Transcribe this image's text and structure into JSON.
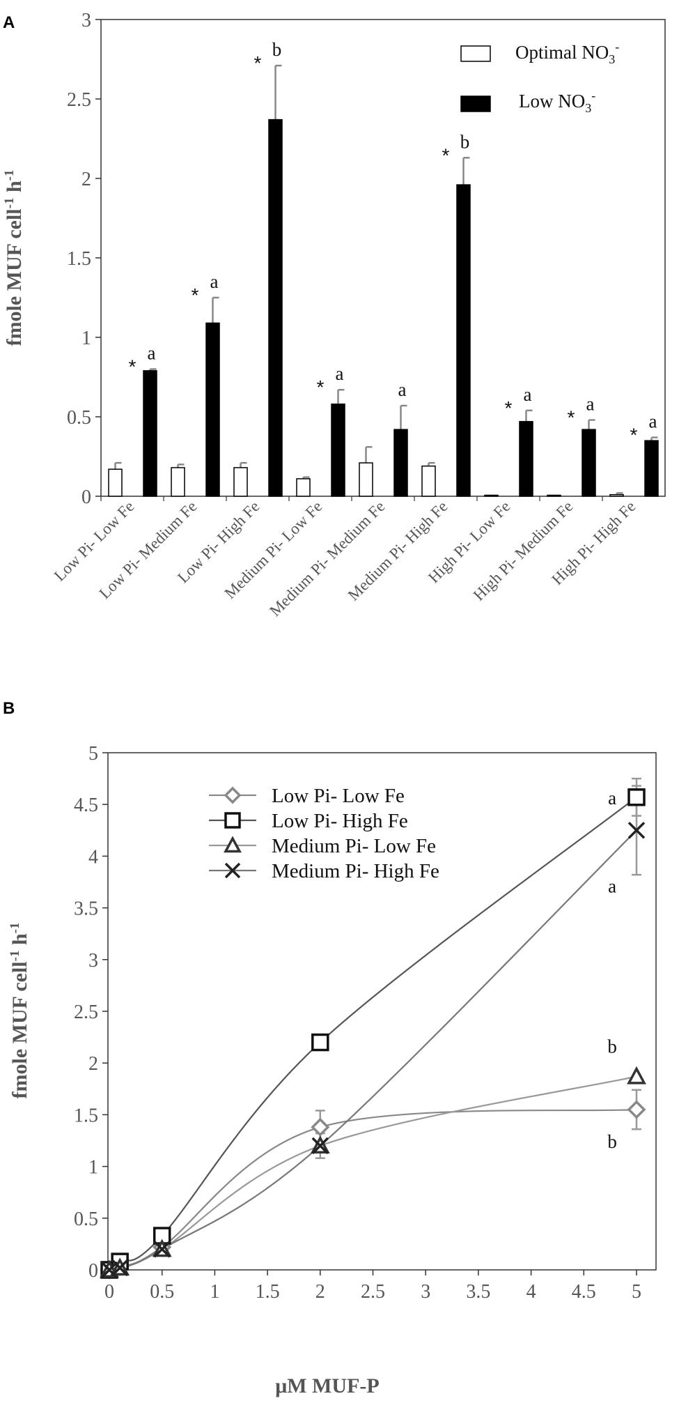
{
  "chart_data": [
    {
      "panel": "A",
      "type": "bar",
      "ylabel": "fmole MUF cell⁻¹ h⁻¹",
      "ylabel_parts": [
        "fmole MUF cell",
        "-1",
        " h",
        "-1"
      ],
      "xlabel": "",
      "ylim": [
        0,
        3
      ],
      "yticks": [
        "0",
        "0.5",
        "1",
        "1.5",
        "2",
        "2.5",
        "3"
      ],
      "categories": [
        "Low Pi- Low Fe",
        "Low Pi- Medium Fe",
        "Low Pi- High Fe",
        "Medium Pi- Low Fe",
        "Medium Pi- Medium Fe",
        "Medium Pi- High Fe",
        "High Pi- Low Fe",
        "High Pi- Medium Fe",
        "High Pi- High Fe"
      ],
      "series": [
        {
          "name": "Optimal NO3-",
          "legend_parts": [
            "Optimal NO",
            "3",
            "-"
          ],
          "fill": "#ffffff",
          "values": [
            0.17,
            0.18,
            0.18,
            0.11,
            0.21,
            0.19,
            0.0,
            0.0,
            0.01
          ],
          "errors": [
            0.04,
            0.02,
            0.03,
            0.01,
            0.1,
            0.02,
            0.0,
            0.0,
            0.01
          ]
        },
        {
          "name": "Low NO3-",
          "legend_parts": [
            "Low NO",
            "3",
            "-"
          ],
          "fill": "#000000",
          "values": [
            0.79,
            1.09,
            2.37,
            0.58,
            0.42,
            1.96,
            0.47,
            0.42,
            0.35
          ],
          "errors": [
            0.01,
            0.16,
            0.34,
            0.09,
            0.15,
            0.17,
            0.07,
            0.06,
            0.02
          ]
        }
      ],
      "significance": [
        "*",
        "*",
        "*",
        "*",
        "",
        "*",
        "*",
        "*",
        "*"
      ],
      "letters": [
        "a",
        "a",
        "b",
        "a",
        "a",
        "b",
        "a",
        "a",
        "a"
      ]
    },
    {
      "panel": "B",
      "type": "line",
      "ylabel": "fmole MUF cell⁻¹ h⁻¹",
      "ylabel_parts": [
        "fmole MUF cell",
        "-1",
        " h",
        "-1"
      ],
      "xlabel": "μM MUF-P",
      "xlim": [
        0,
        5
      ],
      "ylim": [
        0,
        5
      ],
      "xticks": [
        "0",
        "0.5",
        "1",
        "1.5",
        "2",
        "2.5",
        "3",
        "3.5",
        "4",
        "4.5",
        "5"
      ],
      "yticks": [
        "0",
        "0.5",
        "1",
        "1.5",
        "2",
        "2.5",
        "3",
        "3.5",
        "4",
        "4.5",
        "5"
      ],
      "x": [
        0,
        0.1,
        0.5,
        2,
        5
      ],
      "series": [
        {
          "name": "Low Pi- Low Fe",
          "marker": "diamond",
          "color": "#888888",
          "values": [
            0.0,
            0.03,
            0.22,
            1.38,
            1.55
          ],
          "errors": [
            0,
            0,
            0,
            0.16,
            0.19
          ]
        },
        {
          "name": "Low Pi- High Fe",
          "marker": "square",
          "color": "#555555",
          "values": [
            0.0,
            0.08,
            0.33,
            2.2,
            4.57
          ],
          "errors": [
            0,
            0,
            0,
            0,
            0.18
          ]
        },
        {
          "name": "Medium Pi- Low Fe",
          "marker": "triangle",
          "color": "#999999",
          "values": [
            0.0,
            0.02,
            0.2,
            1.2,
            1.87
          ],
          "errors": [
            0,
            0,
            0,
            0.12,
            0
          ]
        },
        {
          "name": "Medium Pi- High Fe",
          "marker": "x",
          "color": "#777777",
          "values": [
            0.0,
            0.02,
            0.2,
            1.2,
            4.25
          ],
          "errors": [
            0,
            0,
            0,
            0,
            0.43
          ]
        }
      ],
      "annotations": [
        {
          "text": "a",
          "x": 4.77,
          "y": 4.5
        },
        {
          "text": "a",
          "x": 4.77,
          "y": 3.65
        },
        {
          "text": "b",
          "x": 4.77,
          "y": 2.1
        },
        {
          "text": "b",
          "x": 4.77,
          "y": 1.18
        }
      ]
    }
  ]
}
